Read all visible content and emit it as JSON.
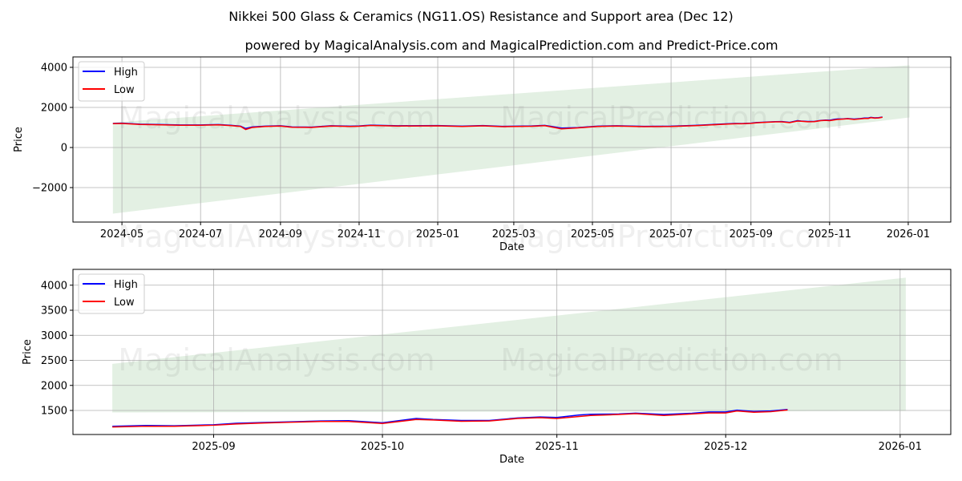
{
  "title": "Nikkei 500 Glass & Ceramics (NG11.OS) Resistance and Support area (Dec 12)",
  "subtitle": "powered by MagicalAnalysis.com and MagicalPrediction.com and Predict-Price.com",
  "watermark": [
    "MagicalAnalysis.com",
    "MagicalPrediction.com"
  ],
  "colors": {
    "high": "#0000ff",
    "low": "#ff0000",
    "band": "#e3f0e3",
    "grid": "#b0b0b0"
  },
  "chart_data": [
    {
      "type": "line",
      "xlabel": "Date",
      "ylabel": "Price",
      "xlim": [
        "2024-03-24",
        "2026-02-03"
      ],
      "ylim": [
        -3720,
        4520
      ],
      "yticks": [
        -2000,
        0,
        2000,
        4000
      ],
      "ytick_labels": [
        "−2000",
        "0",
        "2000",
        "4000"
      ],
      "xticks": [
        "2024-05-01",
        "2024-07-01",
        "2024-09-01",
        "2024-11-01",
        "2025-01-01",
        "2025-03-01",
        "2025-05-01",
        "2025-07-01",
        "2025-09-01",
        "2025-11-01",
        "2026-01-01"
      ],
      "xtick_labels": [
        "2024-05",
        "2024-07",
        "2024-09",
        "2024-11",
        "2025-01",
        "2025-03",
        "2025-05",
        "2025-07",
        "2025-09",
        "2025-11",
        "2026-01"
      ],
      "legend": {
        "position": "upper-left",
        "entries": [
          "High",
          "Low"
        ]
      },
      "grid": true,
      "band": {
        "x": [
          "2024-04-24",
          "2026-01-02"
        ],
        "upper": [
          1250,
          4100
        ],
        "lower": [
          -3300,
          1500
        ]
      },
      "series_start": "2024-04-24"
    },
    {
      "type": "line",
      "xlabel": "Date",
      "ylabel": "Price",
      "xlim": [
        "2025-08-07",
        "2026-01-10"
      ],
      "ylim": [
        1020,
        4316
      ],
      "yticks": [
        1500,
        2000,
        2500,
        3000,
        3500,
        4000
      ],
      "ytick_labels": [
        "1500",
        "2000",
        "2500",
        "3000",
        "3500",
        "4000"
      ],
      "xticks": [
        "2025-09-01",
        "2025-10-01",
        "2025-11-01",
        "2025-12-01",
        "2026-01-01"
      ],
      "xtick_labels": [
        "2025-09",
        "2025-10",
        "2025-11",
        "2025-12",
        "2026-01"
      ],
      "legend": {
        "position": "upper-left",
        "entries": [
          "High",
          "Low"
        ]
      },
      "grid": true,
      "band": {
        "x": [
          "2025-08-14",
          "2026-01-02"
        ],
        "upper": [
          2430,
          4150
        ],
        "lower": [
          1460,
          1490
        ]
      },
      "series_start": "2025-08-14"
    }
  ],
  "series": [
    [
      "2024-04-24",
      1200,
      1190
    ],
    [
      "2024-05-01",
      1215,
      1200
    ],
    [
      "2024-05-15",
      1165,
      1150
    ],
    [
      "2024-06-01",
      1145,
      1130
    ],
    [
      "2024-06-15",
      1125,
      1110
    ],
    [
      "2024-07-01",
      1125,
      1110
    ],
    [
      "2024-07-15",
      1145,
      1130
    ],
    [
      "2024-07-25",
      1105,
      1090
    ],
    [
      "2024-08-01",
      1065,
      1050
    ],
    [
      "2024-08-05",
      950,
      900
    ],
    [
      "2024-08-10",
      1025,
      1000
    ],
    [
      "2024-08-20",
      1065,
      1050
    ],
    [
      "2024-09-01",
      1085,
      1070
    ],
    [
      "2024-09-10",
      1025,
      1010
    ],
    [
      "2024-09-25",
      1015,
      1000
    ],
    [
      "2024-10-10",
      1085,
      1070
    ],
    [
      "2024-10-25",
      1065,
      1050
    ],
    [
      "2024-11-01",
      1075,
      1060
    ],
    [
      "2024-11-10",
      1115,
      1100
    ],
    [
      "2024-12-01",
      1085,
      1070
    ],
    [
      "2025-01-01",
      1095,
      1080
    ],
    [
      "2025-01-20",
      1065,
      1050
    ],
    [
      "2025-02-05",
      1095,
      1080
    ],
    [
      "2025-02-20",
      1055,
      1040
    ],
    [
      "2025-03-15",
      1075,
      1060
    ],
    [
      "2025-03-25",
      1105,
      1090
    ],
    [
      "2025-04-07",
      970,
      930
    ],
    [
      "2025-04-20",
      995,
      980
    ],
    [
      "2025-05-05",
      1065,
      1050
    ],
    [
      "2025-05-20",
      1085,
      1070
    ],
    [
      "2025-06-10",
      1055,
      1040
    ],
    [
      "2025-07-01",
      1065,
      1050
    ],
    [
      "2025-07-20",
      1105,
      1090
    ],
    [
      "2025-08-14",
      1185,
      1170
    ],
    [
      "2025-08-20",
      1200,
      1185
    ],
    [
      "2025-08-25",
      1195,
      1185
    ],
    [
      "2025-09-01",
      1215,
      1205
    ],
    [
      "2025-09-05",
      1245,
      1230
    ],
    [
      "2025-09-10",
      1260,
      1250
    ],
    [
      "2025-09-15",
      1275,
      1265
    ],
    [
      "2025-09-20",
      1290,
      1280
    ],
    [
      "2025-09-25",
      1295,
      1280
    ],
    [
      "2025-10-01",
      1255,
      1240
    ],
    [
      "2025-10-07",
      1340,
      1320
    ],
    [
      "2025-10-10",
      1320,
      1310
    ],
    [
      "2025-10-15",
      1300,
      1285
    ],
    [
      "2025-10-20",
      1300,
      1290
    ],
    [
      "2025-10-25",
      1350,
      1340
    ],
    [
      "2025-10-29",
      1370,
      1355
    ],
    [
      "2025-11-01",
      1360,
      1340
    ],
    [
      "2025-11-05",
      1410,
      1380
    ],
    [
      "2025-11-07",
      1425,
      1400
    ],
    [
      "2025-11-12",
      1430,
      1420
    ],
    [
      "2025-11-15",
      1445,
      1435
    ],
    [
      "2025-11-20",
      1420,
      1400
    ],
    [
      "2025-11-25",
      1445,
      1430
    ],
    [
      "2025-11-28",
      1470,
      1450
    ],
    [
      "2025-12-01",
      1470,
      1450
    ],
    [
      "2025-12-03",
      1505,
      1490
    ],
    [
      "2025-12-06",
      1480,
      1465
    ],
    [
      "2025-12-09",
      1490,
      1475
    ],
    [
      "2025-12-12",
      1520,
      1510
    ]
  ]
}
